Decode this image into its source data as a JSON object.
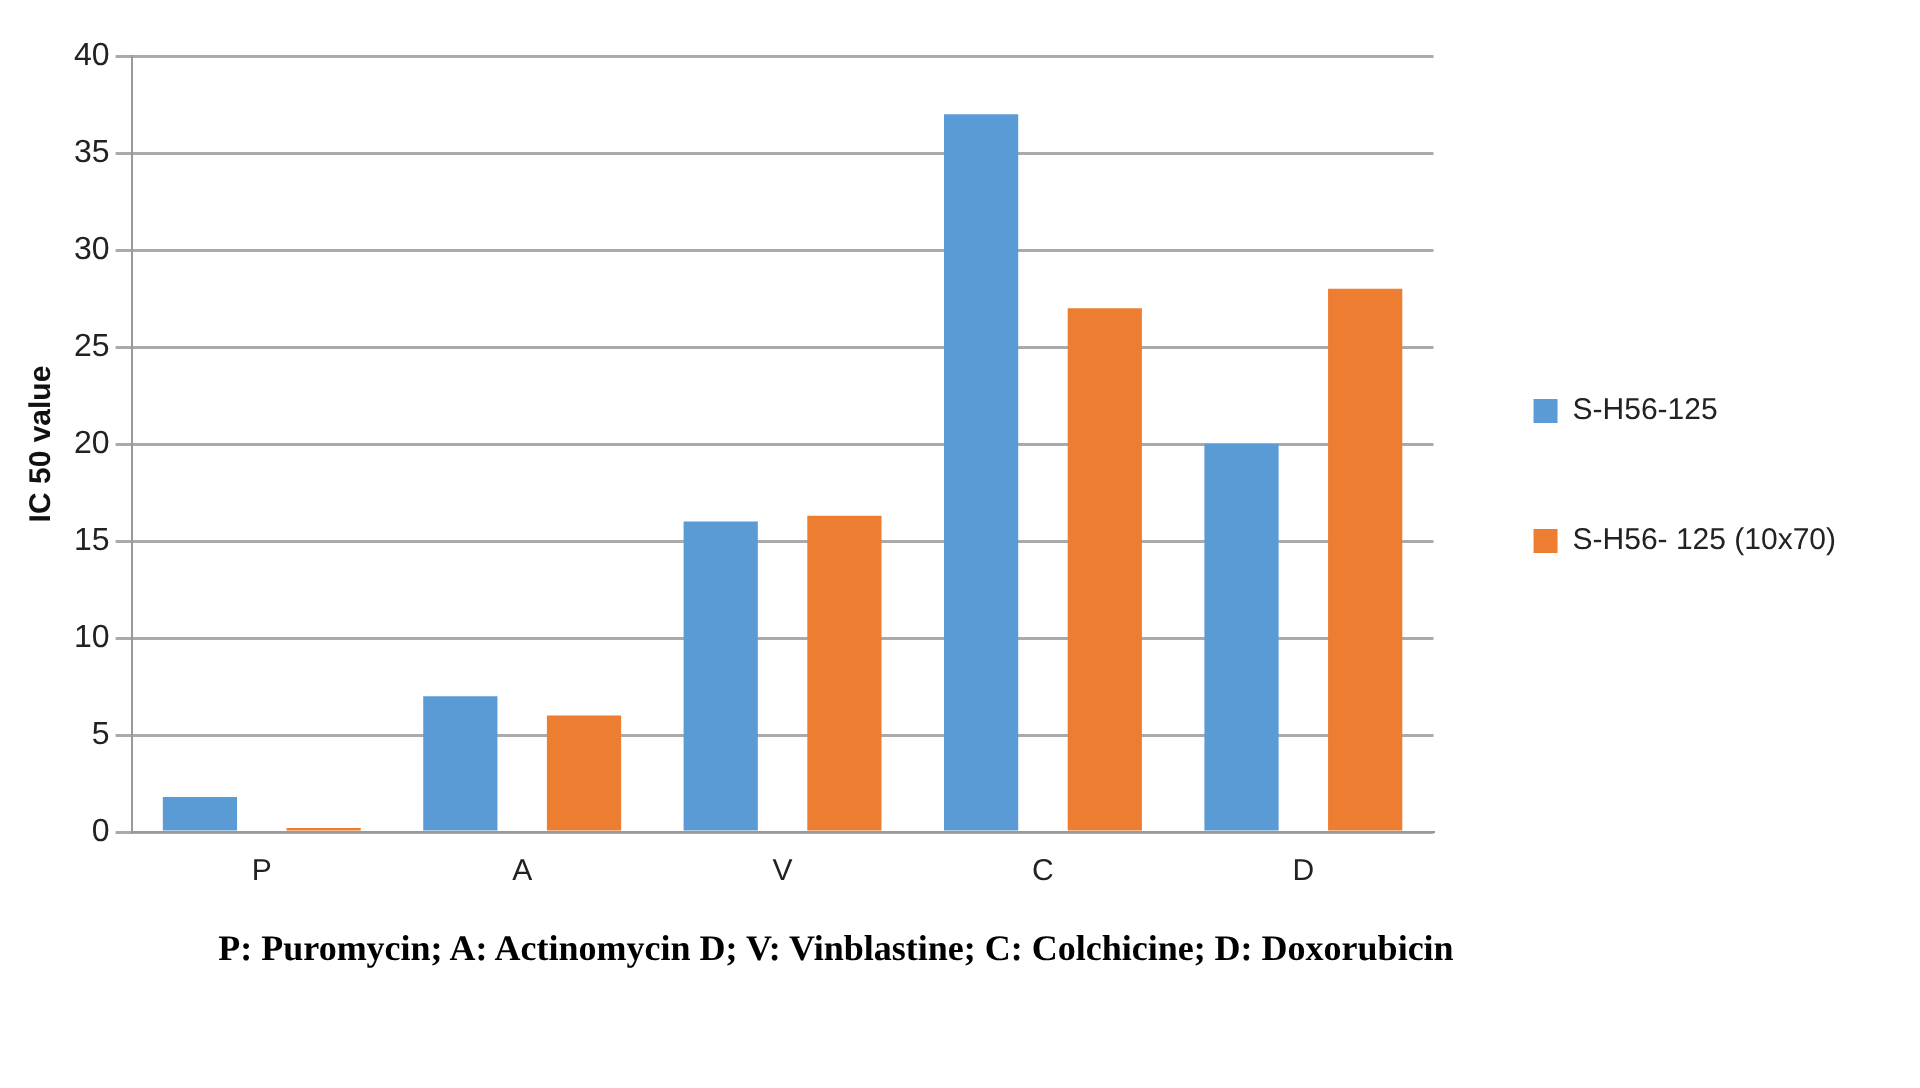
{
  "chart_data": {
    "type": "bar",
    "categories": [
      "P",
      "A",
      "V",
      "C",
      "D"
    ],
    "series": [
      {
        "name": "S-H56-125",
        "color": "#5b9bd5",
        "values": [
          1.8,
          7,
          16,
          37,
          20
        ]
      },
      {
        "name": "S-H56- 125 (10x70)",
        "color": "#ed7d31",
        "values": [
          0.2,
          6,
          16.3,
          27,
          28
        ]
      }
    ],
    "ylabel": "IC 50 value",
    "ylim": [
      0,
      40
    ],
    "yticks": [
      0,
      5,
      10,
      15,
      20,
      25,
      30,
      35,
      40
    ],
    "grid": "y",
    "legend": "right",
    "annotations": [
      "P: Puromycin; A: Actinomycin D; V: Vinblastine; C: Colchicine; D: Doxorubicin"
    ]
  }
}
